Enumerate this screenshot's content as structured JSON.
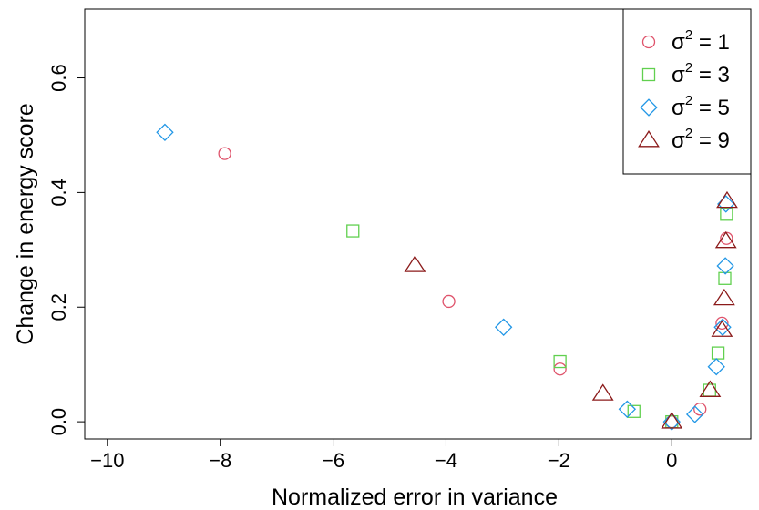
{
  "chart_data": {
    "type": "scatter",
    "xlabel": "Normalized error in variance",
    "ylabel": "Change in energy score",
    "xlim": [
      -10.4,
      1.4
    ],
    "ylim": [
      -0.03,
      0.72
    ],
    "x_ticks": [
      -10,
      -8,
      -6,
      -4,
      -2,
      0
    ],
    "x_tick_labels": [
      "−10",
      "−8",
      "−6",
      "−4",
      "−2",
      "0"
    ],
    "y_ticks": [
      0.0,
      0.2,
      0.4,
      0.6
    ],
    "y_tick_labels": [
      "0.0",
      "0.2",
      "0.4",
      "0.6"
    ],
    "grid": false,
    "legend_position": "top-right",
    "series": [
      {
        "name": "1",
        "marker": "circle",
        "color": "#DF536B",
        "points": [
          [
            -7.92,
            0.468
          ],
          [
            -3.95,
            0.21
          ],
          [
            -1.98,
            0.092
          ],
          [
            0.0,
            0.0
          ],
          [
            0.5,
            0.022
          ],
          [
            0.89,
            0.172
          ],
          [
            0.97,
            0.32
          ]
        ]
      },
      {
        "name": "3",
        "marker": "square",
        "color": "#61D04F",
        "points": [
          [
            -5.65,
            0.333
          ],
          [
            -1.98,
            0.105
          ],
          [
            -0.67,
            0.018
          ],
          [
            0.0,
            0.0
          ],
          [
            0.67,
            0.055
          ],
          [
            0.82,
            0.12
          ],
          [
            0.94,
            0.25
          ],
          [
            0.97,
            0.362
          ]
        ]
      },
      {
        "name": "5",
        "marker": "diamond",
        "color": "#2297E6",
        "points": [
          [
            -8.98,
            0.505
          ],
          [
            -2.98,
            0.165
          ],
          [
            -0.79,
            0.022
          ],
          [
            0.0,
            0.0
          ],
          [
            0.41,
            0.013
          ],
          [
            0.79,
            0.096
          ],
          [
            0.9,
            0.165
          ],
          [
            0.95,
            0.272
          ],
          [
            0.96,
            0.38
          ]
        ]
      },
      {
        "name": "9",
        "marker": "triangle",
        "color": "#8B1A1A",
        "points": [
          [
            -4.55,
            0.273
          ],
          [
            -1.22,
            0.049
          ],
          [
            0.0,
            0.0
          ],
          [
            0.68,
            0.055
          ],
          [
            0.89,
            0.16
          ],
          [
            0.93,
            0.215
          ],
          [
            0.96,
            0.315
          ],
          [
            0.98,
            0.385
          ]
        ]
      }
    ]
  },
  "legend": {
    "symbol": "σ",
    "sup": "2",
    "eq": " = ",
    "entries": [
      "1",
      "3",
      "5",
      "9"
    ]
  }
}
